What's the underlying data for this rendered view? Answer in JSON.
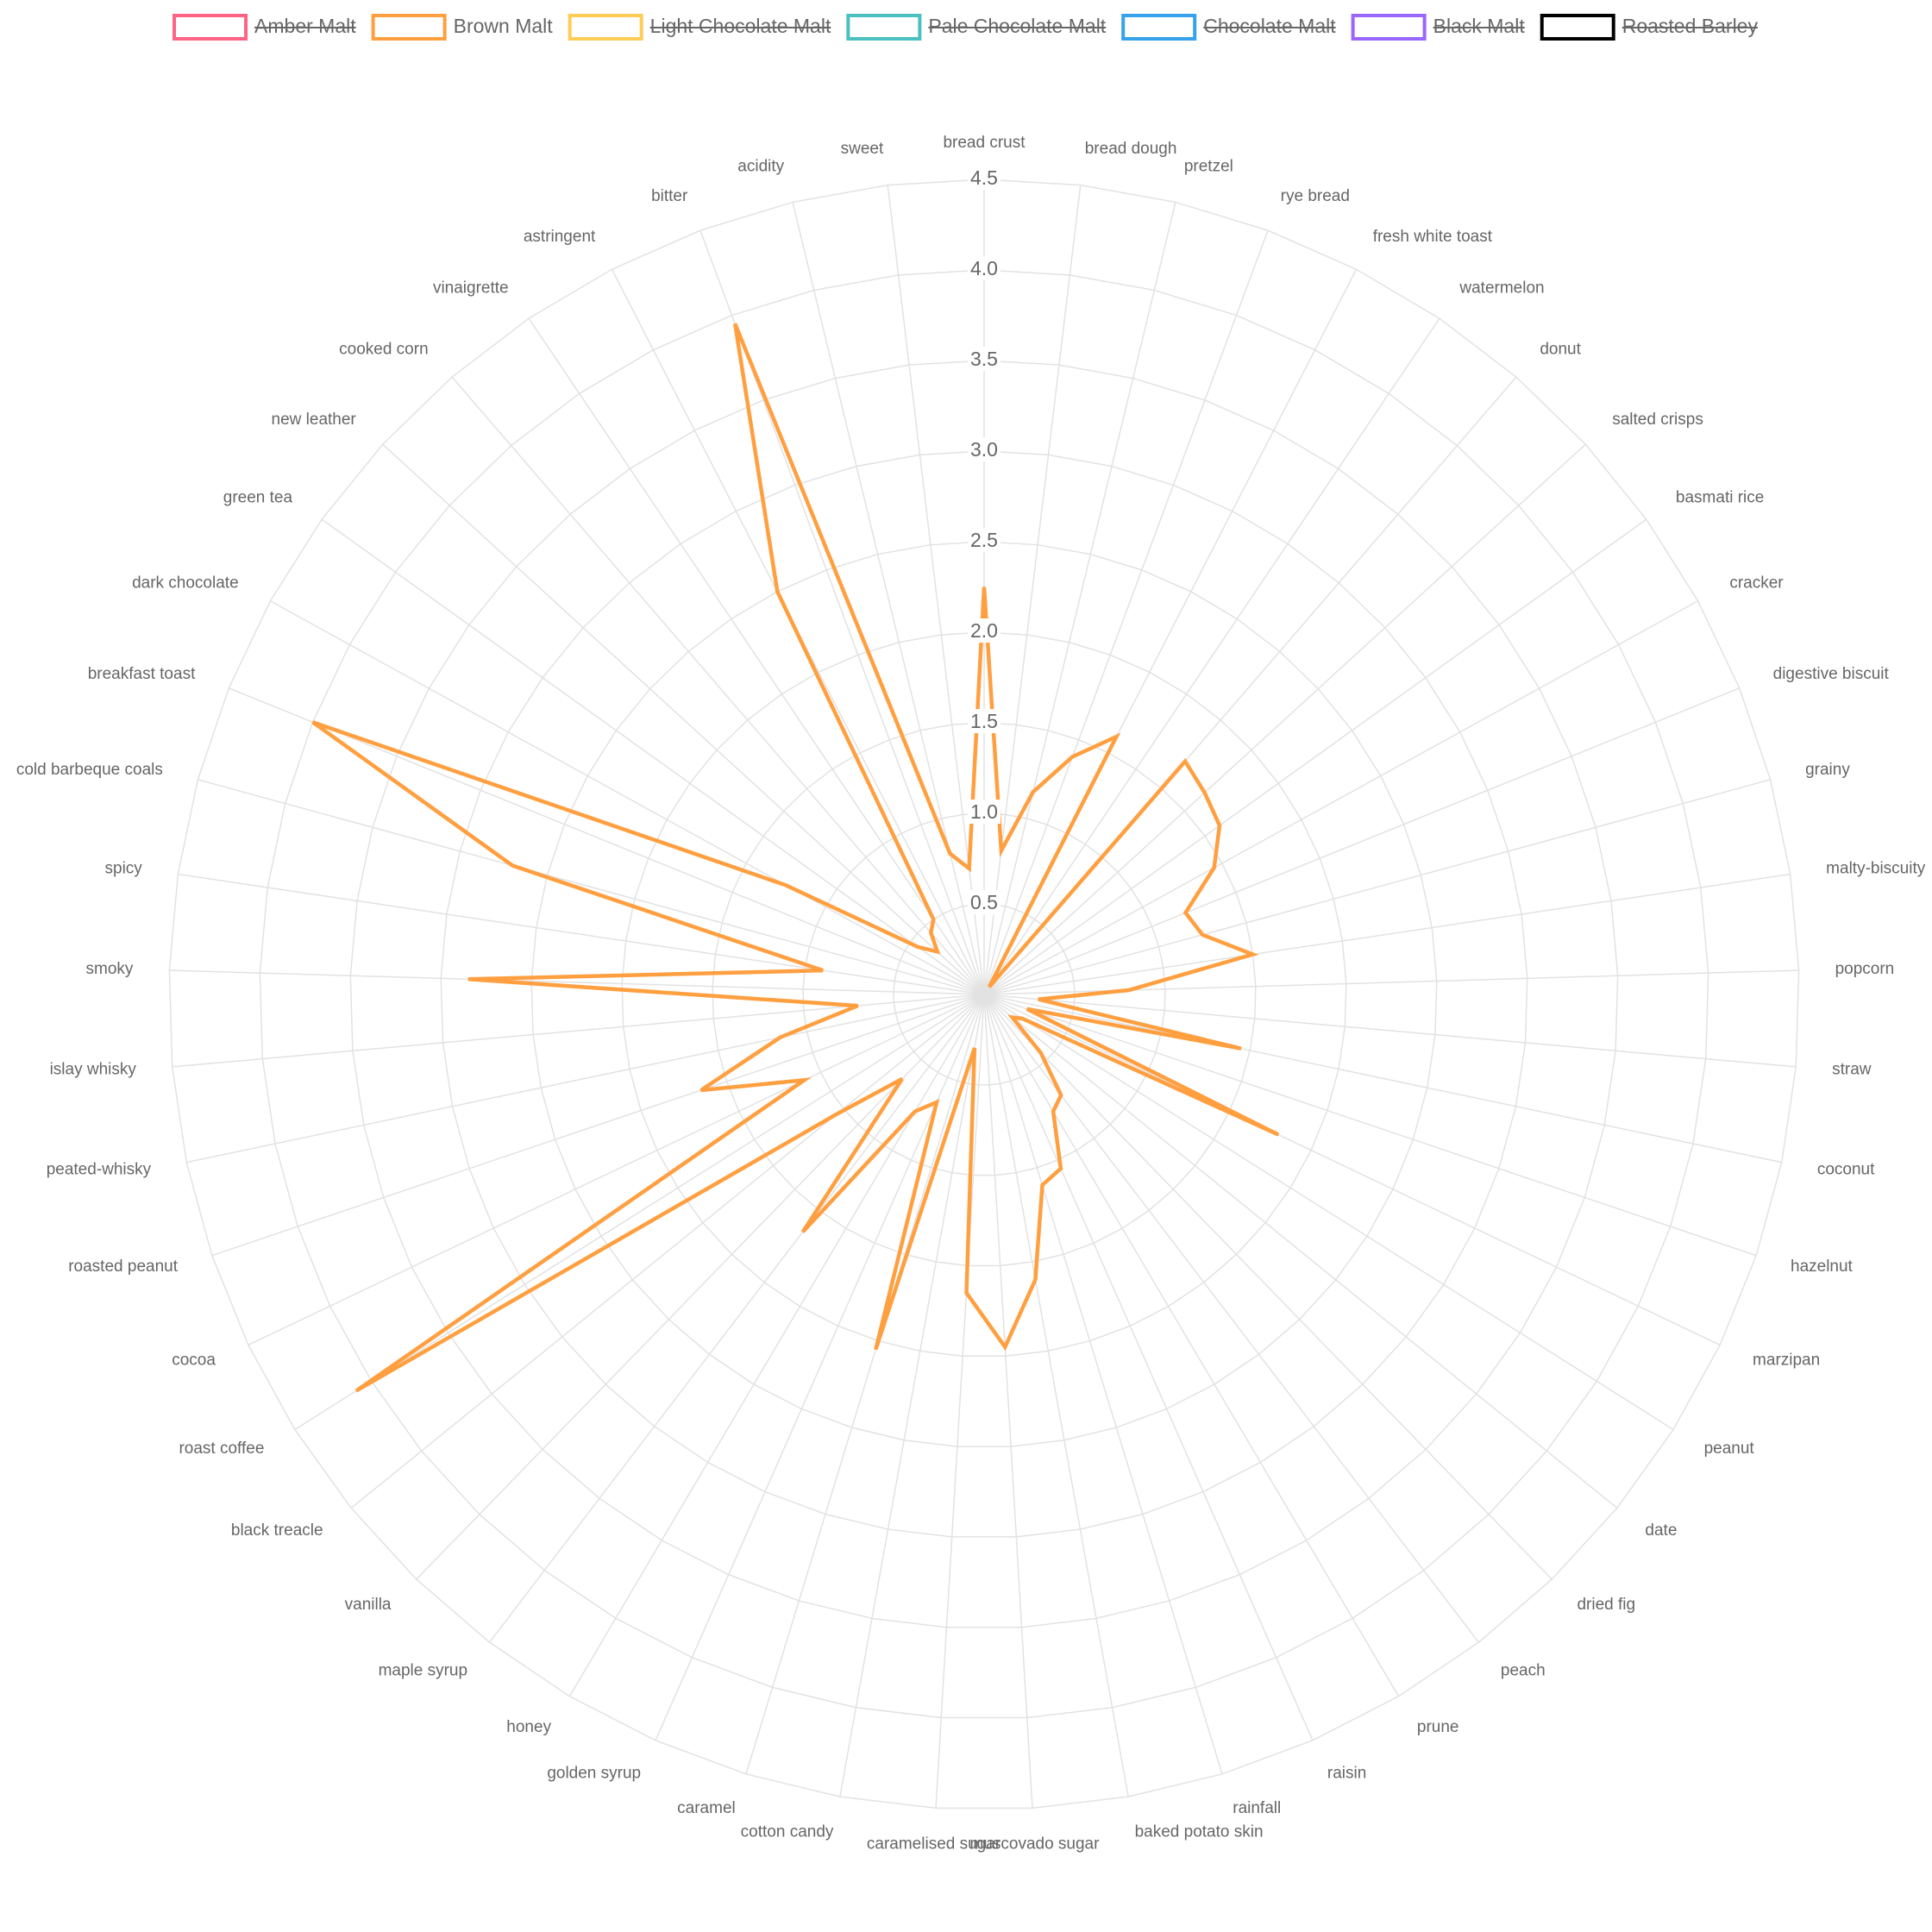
{
  "chart_data": {
    "type": "radar",
    "categories": [
      "bread crust",
      "bread dough",
      "pretzel",
      "rye bread",
      "fresh white toast",
      "watermelon",
      "donut",
      "salted crisps",
      "basmati rice",
      "cracker",
      "digestive biscuit",
      "grainy",
      "malty-biscuity",
      "popcorn",
      "straw",
      "coconut",
      "hazelnut",
      "marzipan",
      "peanut",
      "date",
      "dried fig",
      "peach",
      "prune",
      "raisin",
      "rainfall",
      "baked potato skin",
      "muscovado sugar",
      "caramelised sugar",
      "cotton candy",
      "caramel",
      "golden syrup",
      "honey",
      "maple syrup",
      "vanilla",
      "black treacle",
      "roast coffee",
      "cocoa",
      "roasted peanut",
      "peated-whisky",
      "islay whisky",
      "smoky",
      "spicy",
      "cold barbeque coals",
      "breakfast toast",
      "dark chocolate",
      "green tea",
      "new leather",
      "cooked corn",
      "vinaigrette",
      "astringent",
      "bitter",
      "acidity",
      "sweet"
    ],
    "series": [
      {
        "name": "Amber Malt",
        "color": "#ff6384",
        "hidden": true
      },
      {
        "name": "Brown Malt",
        "color": "#ff9f40",
        "hidden": false,
        "values": [
          2.25,
          0.8,
          1.15,
          1.4,
          1.6,
          0.05,
          1.7,
          1.65,
          1.6,
          1.45,
          1.2,
          1.25,
          1.5,
          0.8,
          0.3,
          1.45,
          0.25,
          1.8,
          0.25,
          0.2,
          0.45,
          0.7,
          0.75,
          1.05,
          1.1,
          1.6,
          1.95,
          1.65,
          0.3,
          2.05,
          0.65,
          0.75,
          1.65,
          0.65,
          1.05,
          4.1,
          1.1,
          1.65,
          1.15,
          0.7,
          2.85,
          0.9,
          2.7,
          4.0,
          1.25,
          0.45,
          0.35,
          0.45,
          0.5,
          2.5,
          3.95,
          0.8,
          0.7
        ]
      },
      {
        "name": "Light Chocolate Malt",
        "color": "#ffcd56",
        "hidden": true
      },
      {
        "name": "Pale Chocolate Malt",
        "color": "#4bc0c0",
        "hidden": true
      },
      {
        "name": "Chocolate Malt",
        "color": "#36a2eb",
        "hidden": true
      },
      {
        "name": "Black Malt",
        "color": "#9966ff",
        "hidden": true
      },
      {
        "name": "Roasted Barley",
        "color": "#000000",
        "hidden": true
      }
    ],
    "ylim": [
      0,
      4.5
    ],
    "yticks": [
      0.5,
      {
        "value": 1,
        "label": "1.0"
      },
      1.5,
      {
        "value": 2,
        "label": "2.0"
      },
      2.5,
      {
        "value": 3,
        "label": "3.0"
      },
      3.5,
      {
        "value": 4,
        "label": "4.0"
      },
      4.5
    ],
    "grid": true,
    "legend": "top"
  }
}
